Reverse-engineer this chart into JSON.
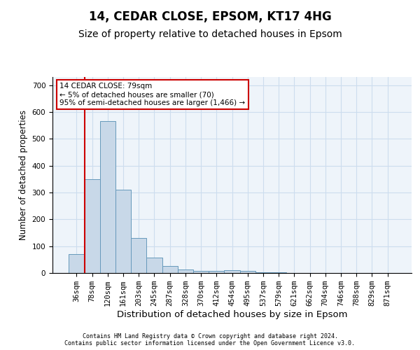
{
  "title1": "14, CEDAR CLOSE, EPSOM, KT17 4HG",
  "title2": "Size of property relative to detached houses in Epsom",
  "xlabel": "Distribution of detached houses by size in Epsom",
  "ylabel": "Number of detached properties",
  "bar_labels": [
    "36sqm",
    "78sqm",
    "120sqm",
    "161sqm",
    "203sqm",
    "245sqm",
    "287sqm",
    "328sqm",
    "370sqm",
    "412sqm",
    "454sqm",
    "495sqm",
    "537sqm",
    "579sqm",
    "621sqm",
    "662sqm",
    "704sqm",
    "746sqm",
    "788sqm",
    "829sqm",
    "871sqm"
  ],
  "bar_values": [
    70,
    350,
    567,
    310,
    130,
    57,
    25,
    13,
    7,
    7,
    10,
    7,
    2,
    2,
    1,
    1,
    1,
    1,
    0,
    0,
    0
  ],
  "bar_color": "#c8d8e8",
  "bar_edge_color": "#6699bb",
  "annotation_text": "14 CEDAR CLOSE: 79sqm\n← 5% of detached houses are smaller (70)\n95% of semi-detached houses are larger (1,466) →",
  "annotation_box_color": "#ffffff",
  "annotation_box_edge_color": "#cc0000",
  "vline_color": "#cc0000",
  "ylim": [
    0,
    730
  ],
  "yticks": [
    0,
    100,
    200,
    300,
    400,
    500,
    600,
    700
  ],
  "grid_color": "#ccddee",
  "bg_color": "#eef4fa",
  "footer_text": "Contains HM Land Registry data © Crown copyright and database right 2024.\nContains public sector information licensed under the Open Government Licence v3.0.",
  "title_fontsize": 12,
  "subtitle_fontsize": 10,
  "tick_fontsize": 7.5,
  "ylabel_fontsize": 8.5,
  "xlabel_fontsize": 9.5,
  "annotation_fontsize": 7.5,
  "footer_fontsize": 6.0
}
